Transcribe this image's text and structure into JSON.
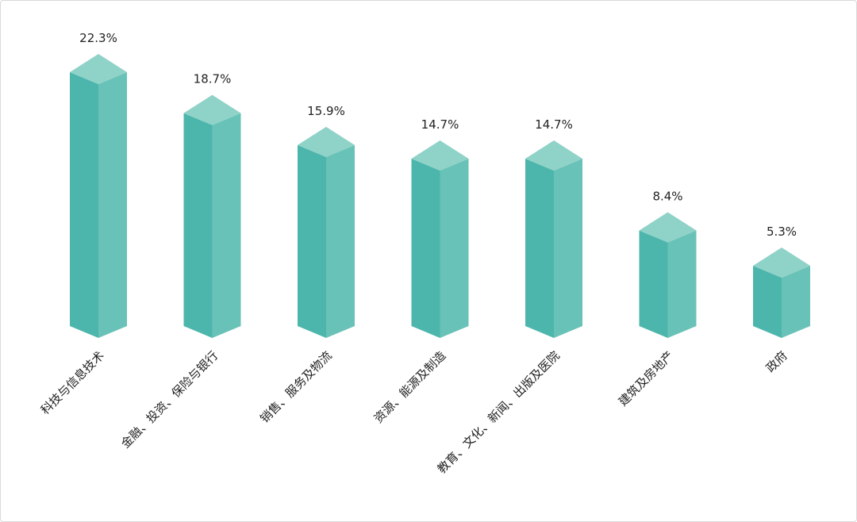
{
  "chart_data": {
    "type": "bar3d",
    "categories": [
      "科技与信息技术",
      "金融、投资、保险与银行",
      "销售、服务及物流",
      "资源、能源及制造",
      "教育、文化、新闻、出版及医院",
      "建筑及房地产",
      "政府"
    ],
    "values": [
      22.3,
      18.7,
      15.9,
      14.7,
      14.7,
      8.4,
      5.3
    ],
    "value_labels": [
      "22.3%",
      "18.7%",
      "15.9%",
      "14.7%",
      "14.7%",
      "8.4%",
      "5.3%"
    ],
    "color": "#4db6ac"
  }
}
